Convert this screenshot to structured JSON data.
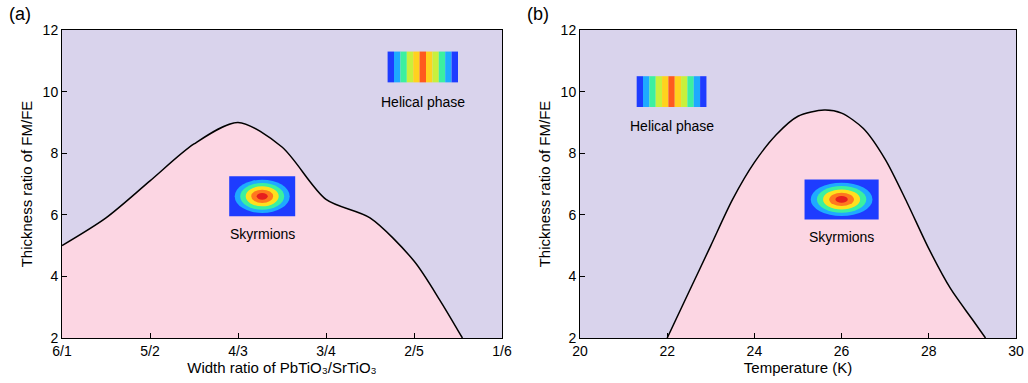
{
  "chart_data": [
    {
      "type": "area",
      "panel_label": "(a)",
      "x_label": "Width ratio of PbTiO₃/SrTiO₃",
      "y_label": "Thickness ratio of FM/FE",
      "x": [
        0,
        0.5,
        1.0,
        1.5,
        2.0,
        2.5,
        3.0,
        3.5,
        4.0,
        4.3,
        4.55
      ],
      "values": [
        5.0,
        5.9,
        7.1,
        8.3,
        9.0,
        8.2,
        6.5,
        5.9,
        4.5,
        3.2,
        2.0
      ],
      "xlim": [
        0,
        5
      ],
      "xticks": [
        {
          "value": 0,
          "label": "6/1"
        },
        {
          "value": 1,
          "label": "5/2"
        },
        {
          "value": 2,
          "label": "4/3"
        },
        {
          "value": 3,
          "label": "3/4"
        },
        {
          "value": 4,
          "label": "2/5"
        },
        {
          "value": 5,
          "label": "1/6"
        }
      ],
      "ylim": [
        2,
        12
      ],
      "yticks": [
        2,
        4,
        6,
        8,
        10,
        12
      ],
      "annotations": [
        "Helical phase",
        "Skyrmions"
      ]
    },
    {
      "type": "area",
      "panel_label": "(b)",
      "x_label": "Temperature (K)",
      "y_label": "Thickness ratio of FM/FE",
      "x": [
        22,
        22.5,
        23,
        23.5,
        24,
        24.5,
        25,
        25.6,
        26,
        26.5,
        27,
        27.5,
        28,
        28.5,
        29,
        29.3
      ],
      "values": [
        2.0,
        3.5,
        5.0,
        6.5,
        7.7,
        8.6,
        9.2,
        9.4,
        9.3,
        8.8,
        7.8,
        6.4,
        4.9,
        3.6,
        2.6,
        2.0
      ],
      "xlim": [
        20,
        30
      ],
      "xticks": [
        20,
        22,
        24,
        26,
        28,
        30
      ],
      "ylim": [
        2,
        12
      ],
      "yticks": [
        2,
        4,
        6,
        8,
        10,
        12
      ],
      "annotations": [
        "Helical phase",
        "Skyrmions"
      ]
    }
  ]
}
